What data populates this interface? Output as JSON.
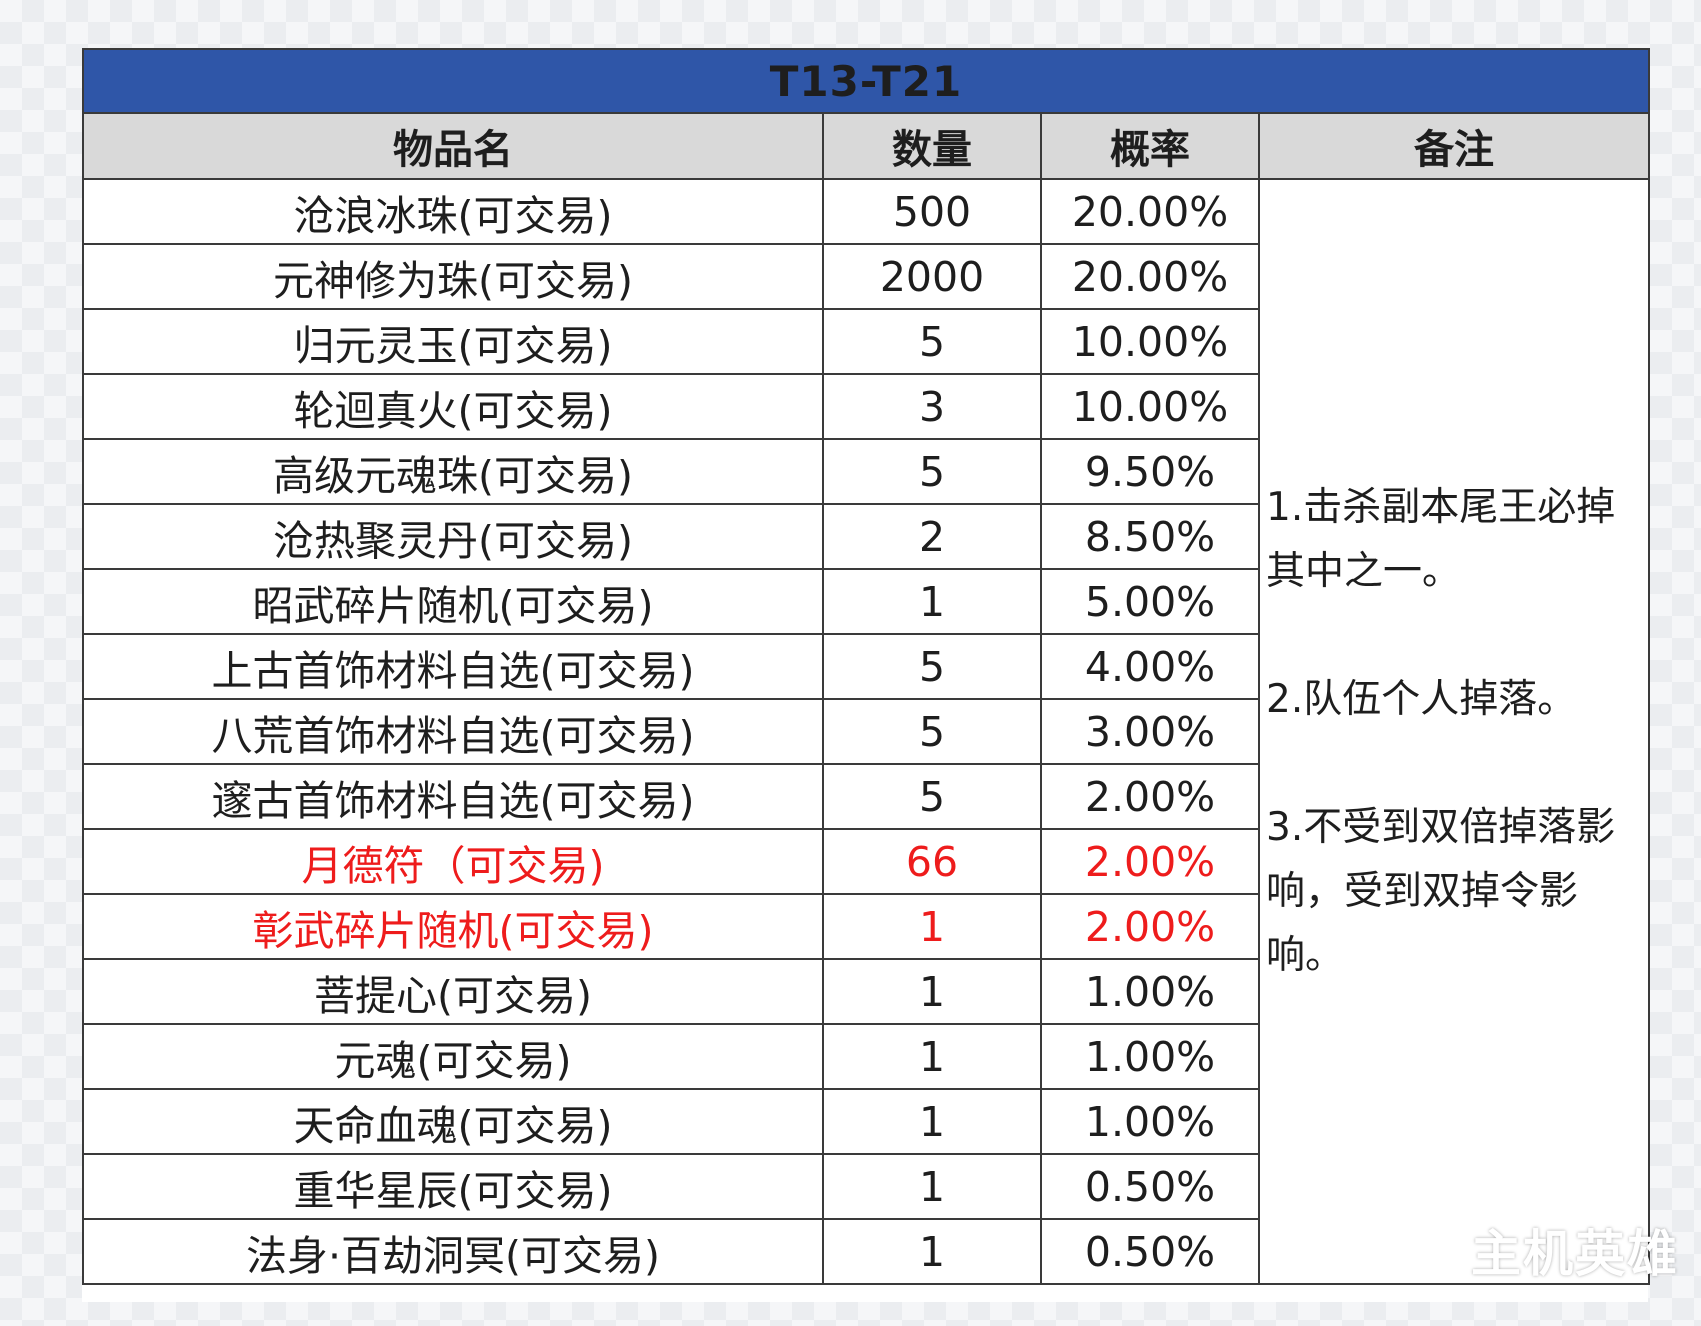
{
  "table": {
    "title": "T13-T21",
    "headers": {
      "name": "物品名",
      "qty": "数量",
      "rate": "概率",
      "notes": "备注"
    },
    "rows": [
      {
        "name": "沧浪冰珠(可交易)",
        "qty": "500",
        "rate": "20.00%",
        "highlight": false
      },
      {
        "name": "元神修为珠(可交易)",
        "qty": "2000",
        "rate": "20.00%",
        "highlight": false
      },
      {
        "name": "归元灵玉(可交易)",
        "qty": "5",
        "rate": "10.00%",
        "highlight": false
      },
      {
        "name": "轮迴真火(可交易)",
        "qty": "3",
        "rate": "10.00%",
        "highlight": false
      },
      {
        "name": "高级元魂珠(可交易)",
        "qty": "5",
        "rate": "9.50%",
        "highlight": false
      },
      {
        "name": "沧热聚灵丹(可交易)",
        "qty": "2",
        "rate": "8.50%",
        "highlight": false
      },
      {
        "name": "昭武碎片随机(可交易)",
        "qty": "1",
        "rate": "5.00%",
        "highlight": false
      },
      {
        "name": "上古首饰材料自选(可交易)",
        "qty": "5",
        "rate": "4.00%",
        "highlight": false
      },
      {
        "name": "八荒首饰材料自选(可交易)",
        "qty": "5",
        "rate": "3.00%",
        "highlight": false
      },
      {
        "name": "邃古首饰材料自选(可交易)",
        "qty": "5",
        "rate": "2.00%",
        "highlight": false
      },
      {
        "name": "月德符（可交易)",
        "qty": "66",
        "rate": "2.00%",
        "highlight": true
      },
      {
        "name": "彰武碎片随机(可交易)",
        "qty": "1",
        "rate": "2.00%",
        "highlight": true
      },
      {
        "name": "菩提心(可交易)",
        "qty": "1",
        "rate": "1.00%",
        "highlight": false
      },
      {
        "name": "元魂(可交易)",
        "qty": "1",
        "rate": "1.00%",
        "highlight": false
      },
      {
        "name": "天命血魂(可交易)",
        "qty": "1",
        "rate": "1.00%",
        "highlight": false
      },
      {
        "name": "重华星辰(可交易)",
        "qty": "1",
        "rate": "0.50%",
        "highlight": false
      },
      {
        "name": "法身·百劫洞冥(可交易)",
        "qty": "1",
        "rate": "0.50%",
        "highlight": false
      }
    ],
    "notes": [
      "1.击杀副本尾王必掉其中之一。",
      "2.队伍个人掉落。",
      "3.不受到双倍掉落影响，受到双掉令影响。"
    ]
  },
  "watermark": "主机英雄",
  "colors": {
    "title_bg": "#2f56a8",
    "header_bg": "#d9d9d9",
    "highlight_text": "#ee1c1c",
    "border": "#3a3a3a"
  }
}
